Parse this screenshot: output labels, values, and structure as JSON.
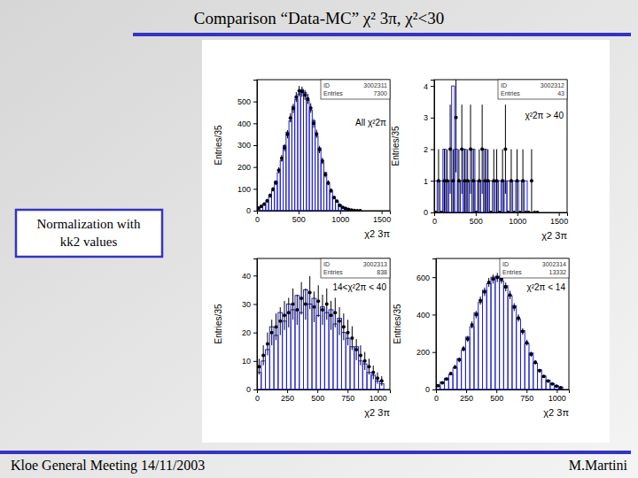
{
  "slide": {
    "title": "Comparison “Data-MC” χ² 3π, χ²<30",
    "note_box": [
      "Normalization with",
      "kk2 values"
    ],
    "footer_left": "Kloe General Meeting 14/11/2003",
    "footer_right": "M.Martini"
  },
  "chart_data": [
    {
      "type": "histogram",
      "title": "All χ²2π",
      "x_label": "χ2 3π",
      "y_label": "Entries/35",
      "stats": [
        {
          "label": "ID",
          "value": 3002311
        },
        {
          "label": "Entries",
          "value": 7300
        }
      ],
      "bins": [
        0,
        35,
        70,
        105,
        140,
        175,
        210,
        245,
        280,
        315,
        350,
        385,
        420,
        455,
        490,
        525,
        560,
        595,
        630,
        665,
        700,
        735,
        770,
        805,
        840,
        875,
        910,
        945,
        980,
        1015,
        1050,
        1085,
        1120,
        1155,
        1190,
        1225,
        1260
      ],
      "xlim": [
        0,
        1600
      ],
      "xticks": [
        0,
        500,
        1000,
        1500
      ],
      "ylim": [
        0,
        600
      ],
      "yticks": [
        0,
        100,
        200,
        300,
        400,
        500
      ],
      "series": [
        {
          "type": "bar",
          "color": "#1f1fd0",
          "values": [
            8,
            15,
            25,
            40,
            62,
            92,
            135,
            175,
            230,
            298,
            360,
            412,
            478,
            510,
            535,
            555,
            542,
            505,
            460,
            412,
            342,
            288,
            220,
            175,
            122,
            86,
            64,
            40,
            28,
            17,
            8,
            5,
            2,
            1,
            1,
            0
          ]
        },
        {
          "type": "scatter",
          "marker": "circle",
          "color": "#000000",
          "values": [
            12,
            20,
            30,
            46,
            70,
            98,
            128,
            185,
            240,
            288,
            350,
            425,
            468,
            520,
            548,
            545,
            530,
            512,
            470,
            400,
            352,
            280,
            228,
            165,
            128,
            92,
            60,
            44,
            24,
            15,
            10,
            6,
            3,
            1,
            0,
            0
          ],
          "errors": [
            3.5,
            4.5,
            5.5,
            6.8,
            8.4,
            9.9,
            11.3,
            13.6,
            15.5,
            17,
            18.7,
            20.6,
            21.6,
            22.8,
            23.4,
            23.3,
            23,
            22.6,
            21.7,
            20,
            18.8,
            16.7,
            15.1,
            12.8,
            11.3,
            9.6,
            7.7,
            6.6,
            4.9,
            3.9,
            3.2,
            2.4,
            1.7,
            1,
            0,
            0
          ]
        }
      ]
    },
    {
      "type": "histogram",
      "title": "χ²2π > 40",
      "x_label": "χ2 3π",
      "y_label": "Entries/35",
      "stats": [
        {
          "label": "ID",
          "value": 3002312
        },
        {
          "label": "Entries",
          "value": 43
        }
      ],
      "bins": [
        0,
        35,
        70,
        105,
        140,
        175,
        210,
        245,
        280,
        315,
        350,
        385,
        420,
        455,
        490,
        525,
        560,
        595,
        630,
        665,
        700,
        735,
        770,
        805,
        840,
        875,
        910,
        945,
        980,
        1015,
        1050,
        1085,
        1120,
        1155,
        1190,
        1225,
        1260
      ],
      "xlim": [
        0,
        1600
      ],
      "xticks": [
        0,
        500,
        1000,
        1500
      ],
      "ylim": [
        0,
        4.2
      ],
      "yticks": [
        0,
        1,
        2,
        3,
        4
      ],
      "series": [
        {
          "type": "bar",
          "color": "#1f1fd0",
          "values": [
            1,
            0,
            1,
            2,
            1,
            1,
            4,
            2,
            1,
            1,
            2,
            1,
            1,
            2,
            1,
            1,
            1,
            2,
            1,
            1,
            0,
            1,
            1,
            1,
            1,
            1,
            0,
            1,
            0,
            1,
            0,
            1,
            0,
            0,
            0,
            0
          ]
        },
        {
          "type": "scatter",
          "marker": "circle",
          "color": "#000000",
          "values": [
            0,
            1,
            0,
            1,
            1,
            2,
            1,
            3,
            1,
            2,
            1,
            1,
            2,
            1,
            0,
            1,
            2,
            1,
            1,
            0,
            1,
            1,
            0,
            1,
            2,
            0,
            1,
            0,
            1,
            0,
            1,
            0,
            0,
            1,
            0,
            0
          ],
          "errors": [
            0,
            1,
            0,
            1,
            1,
            1.41,
            1,
            1.73,
            1,
            1.41,
            1,
            1,
            1.41,
            1,
            0,
            1,
            1.41,
            1,
            1,
            0,
            1,
            1,
            0,
            1,
            1.41,
            0,
            1,
            0,
            1,
            0,
            1,
            0,
            0,
            1,
            0,
            0
          ]
        }
      ]
    },
    {
      "type": "histogram",
      "title": "14<χ²2π < 40",
      "x_label": "χ2 3π",
      "y_label": "Entries/35",
      "stats": [
        {
          "label": "ID",
          "value": 3002313
        },
        {
          "label": "Entries",
          "value": 838
        }
      ],
      "bins": [
        0,
        35,
        70,
        105,
        140,
        175,
        210,
        245,
        280,
        315,
        350,
        385,
        420,
        455,
        490,
        525,
        560,
        595,
        630,
        665,
        700,
        735,
        770,
        805,
        840,
        875,
        910,
        945,
        980,
        1015,
        1050
      ],
      "xlim": [
        0,
        1100
      ],
      "xticks": [
        0,
        250,
        500,
        750,
        1000
      ],
      "ylim": [
        0,
        46
      ],
      "yticks": [
        0,
        10,
        20,
        30,
        40
      ],
      "series": [
        {
          "type": "bar",
          "color": "#1f1fd0",
          "values": [
            6,
            10,
            14,
            22,
            19,
            27,
            24,
            30,
            28,
            33,
            27,
            35,
            30,
            32,
            26,
            29,
            27,
            28,
            23,
            25,
            20,
            18,
            15,
            15,
            10,
            9,
            6,
            5,
            3,
            2
          ]
        },
        {
          "type": "scatter",
          "marker": "circle",
          "color": "#000000",
          "values": [
            8,
            12,
            16,
            20,
            22,
            24,
            26,
            27,
            30,
            28,
            32,
            30,
            34,
            29,
            31,
            28,
            30,
            26,
            27,
            24,
            22,
            20,
            18,
            14,
            12,
            10,
            8,
            6,
            4,
            3
          ],
          "errors": [
            2.8,
            3.5,
            4,
            4.5,
            4.7,
            4.9,
            5.1,
            5.2,
            5.5,
            5.3,
            5.7,
            5.5,
            5.8,
            5.4,
            5.6,
            5.3,
            5.5,
            5.1,
            5.2,
            4.9,
            4.7,
            4.5,
            4.2,
            3.7,
            3.5,
            3.2,
            2.8,
            2.4,
            2,
            1.7
          ]
        }
      ]
    },
    {
      "type": "histogram",
      "title": "χ²2π < 14",
      "x_label": "χ2 3π",
      "y_label": "Entries/35",
      "stats": [
        {
          "label": "ID",
          "value": 3002314
        },
        {
          "label": "Entries",
          "value": 13332
        }
      ],
      "bins": [
        0,
        35,
        70,
        105,
        140,
        175,
        210,
        245,
        280,
        315,
        350,
        385,
        420,
        455,
        490,
        525,
        560,
        595,
        630,
        665,
        700,
        735,
        770,
        805,
        840,
        875,
        910,
        945,
        980,
        1015,
        1050
      ],
      "xlim": [
        0,
        1100
      ],
      "xticks": [
        0,
        250,
        500,
        750,
        1000
      ],
      "ylim": [
        0,
        700
      ],
      "yticks": [
        0,
        200,
        400,
        600
      ],
      "series": [
        {
          "type": "bar",
          "color": "#1f1fd0",
          "values": [
            18,
            40,
            60,
            80,
            115,
            165,
            210,
            280,
            335,
            410,
            465,
            530,
            565,
            600,
            605,
            580,
            555,
            500,
            448,
            375,
            315,
            245,
            195,
            140,
            105,
            72,
            50,
            32,
            20,
            13
          ]
        },
        {
          "type": "scatter",
          "marker": "circle",
          "color": "#000000",
          "values": [
            20,
            35,
            55,
            85,
            120,
            158,
            218,
            270,
            345,
            400,
            475,
            522,
            572,
            590,
            598,
            590,
            548,
            505,
            440,
            382,
            310,
            250,
            188,
            145,
            100,
            70,
            45,
            30,
            18,
            10
          ],
          "errors": [
            4.5,
            5.9,
            7.4,
            9.2,
            11,
            12.6,
            14.8,
            16.4,
            18.6,
            20,
            21.8,
            22.8,
            23.9,
            24.3,
            24.5,
            24.3,
            23.4,
            22.5,
            21,
            19.5,
            17.6,
            15.8,
            13.7,
            12,
            10,
            8.4,
            6.7,
            5.5,
            4.2,
            3.2
          ]
        }
      ]
    }
  ]
}
